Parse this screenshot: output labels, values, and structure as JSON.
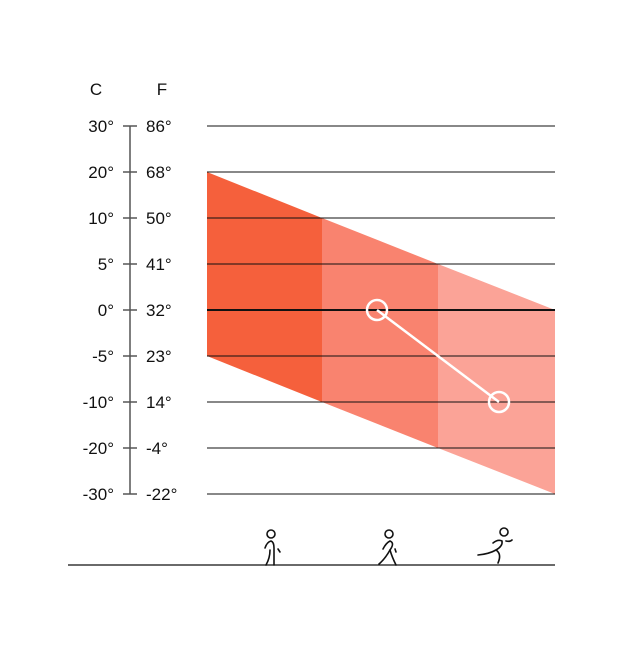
{
  "chart_data": {
    "type": "area",
    "axis_headers": {
      "celsius": "C",
      "fahrenheit": "F"
    },
    "ticks": [
      {
        "c": "30°",
        "f": "86°"
      },
      {
        "c": "20°",
        "f": "68°"
      },
      {
        "c": "10°",
        "f": "50°"
      },
      {
        "c": "5°",
        "f": "41°"
      },
      {
        "c": "0°",
        "f": "32°"
      },
      {
        "c": "-5°",
        "f": "23°"
      },
      {
        "c": "-10°",
        "f": "14°"
      },
      {
        "c": "-20°",
        "f": "-4°"
      },
      {
        "c": "-30°",
        "f": "-22°"
      }
    ],
    "tick_values_c": [
      30,
      20,
      10,
      5,
      0,
      -5,
      -10,
      -20,
      -30
    ],
    "categories": [
      "walking",
      "jogging",
      "running"
    ],
    "bands": [
      {
        "activity": "walking",
        "icon": "walking-person-icon",
        "upper_c": [
          20,
          10
        ],
        "lower_c": [
          -5,
          -10
        ],
        "color": "#f5603c"
      },
      {
        "activity": "jogging",
        "icon": "jogging-person-icon",
        "upper_c": [
          10,
          5
        ],
        "lower_c": [
          -10,
          -20
        ],
        "color": "#f9836f"
      },
      {
        "activity": "running",
        "icon": "running-person-icon",
        "upper_c": [
          5,
          0
        ],
        "lower_c": [
          -20,
          -30
        ],
        "color": "#fba397"
      }
    ],
    "markers": [
      {
        "activity": "jogging",
        "value_c": 0
      },
      {
        "activity": "running",
        "value_c": -10
      }
    ],
    "grid": true
  }
}
